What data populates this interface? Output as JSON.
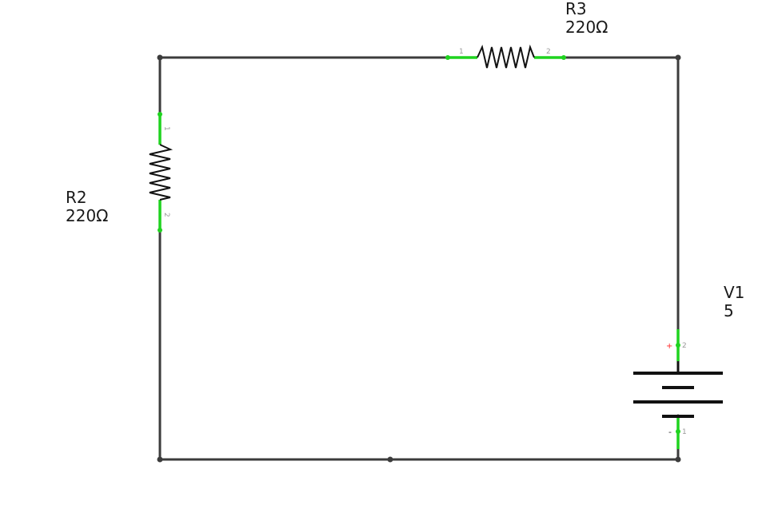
{
  "schematic": {
    "colors": {
      "wire": "#3c3c3c",
      "lead": "#1fd31f",
      "symbol": "#111111",
      "pin_text": "#9a9a9a",
      "plus_sign": "#ff2a2a"
    },
    "components": {
      "r2": {
        "ref": "R2",
        "value": "220Ω",
        "pin_top": "1",
        "pin_bottom": "2"
      },
      "r3": {
        "ref": "R3",
        "value": "220Ω",
        "pin_left": "1",
        "pin_right": "2"
      },
      "v1": {
        "ref": "V1",
        "value": "5",
        "plus": "+",
        "minus": "-",
        "pin_top": "2",
        "pin_bottom": "1"
      }
    }
  }
}
